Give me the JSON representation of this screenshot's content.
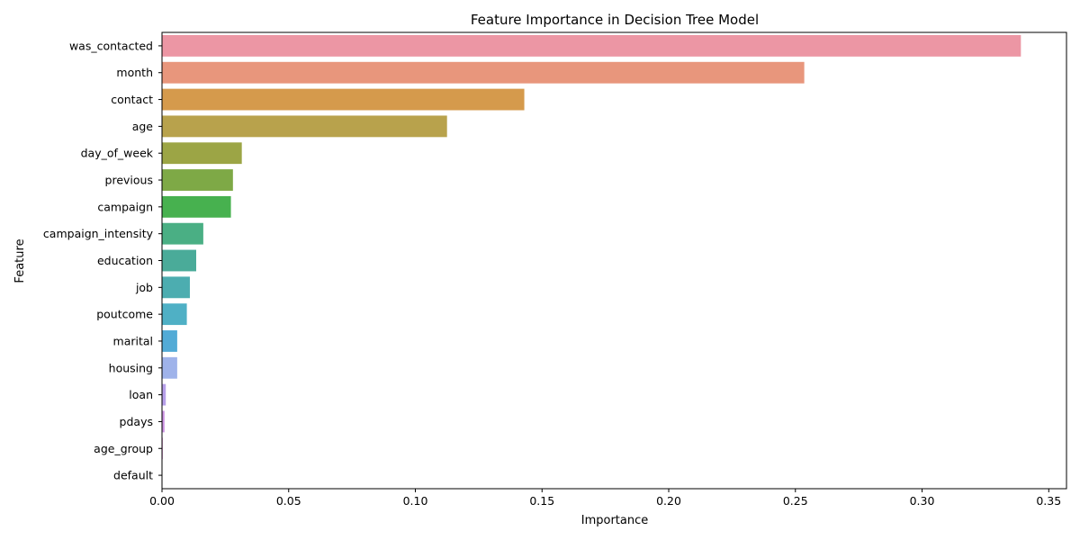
{
  "chart_data": {
    "type": "bar",
    "orientation": "horizontal",
    "title": "Feature Importance in Decision Tree Model",
    "xlabel": "Importance",
    "ylabel": "Feature",
    "xlim": [
      0,
      0.357
    ],
    "xticks": [
      0.0,
      0.05,
      0.1,
      0.15,
      0.2,
      0.25,
      0.3,
      0.35
    ],
    "xtick_labels": [
      "0.00",
      "0.05",
      "0.10",
      "0.15",
      "0.20",
      "0.25",
      "0.30",
      "0.35"
    ],
    "grid": false,
    "categories": [
      "was_contacted",
      "month",
      "contact",
      "age",
      "day_of_week",
      "previous",
      "campaign",
      "campaign_intensity",
      "education",
      "job",
      "poutcome",
      "marital",
      "housing",
      "loan",
      "pdays",
      "age_group",
      "default"
    ],
    "values": [
      0.339,
      0.2535,
      0.143,
      0.1125,
      0.0315,
      0.028,
      0.0272,
      0.0163,
      0.0135,
      0.011,
      0.0098,
      0.006,
      0.006,
      0.0015,
      0.001,
      0.0003,
      0.0
    ],
    "colors": [
      "#ec96a4",
      "#e8967c",
      "#d59a4c",
      "#b8a24c",
      "#9ca545",
      "#7ea946",
      "#47b14f",
      "#4aaf84",
      "#4aab99",
      "#4cadb0",
      "#4fb0c5",
      "#52abd6",
      "#9fb3ea",
      "#b7a0ea",
      "#cd94e2",
      "#db8ed4",
      "#e591c1"
    ]
  }
}
